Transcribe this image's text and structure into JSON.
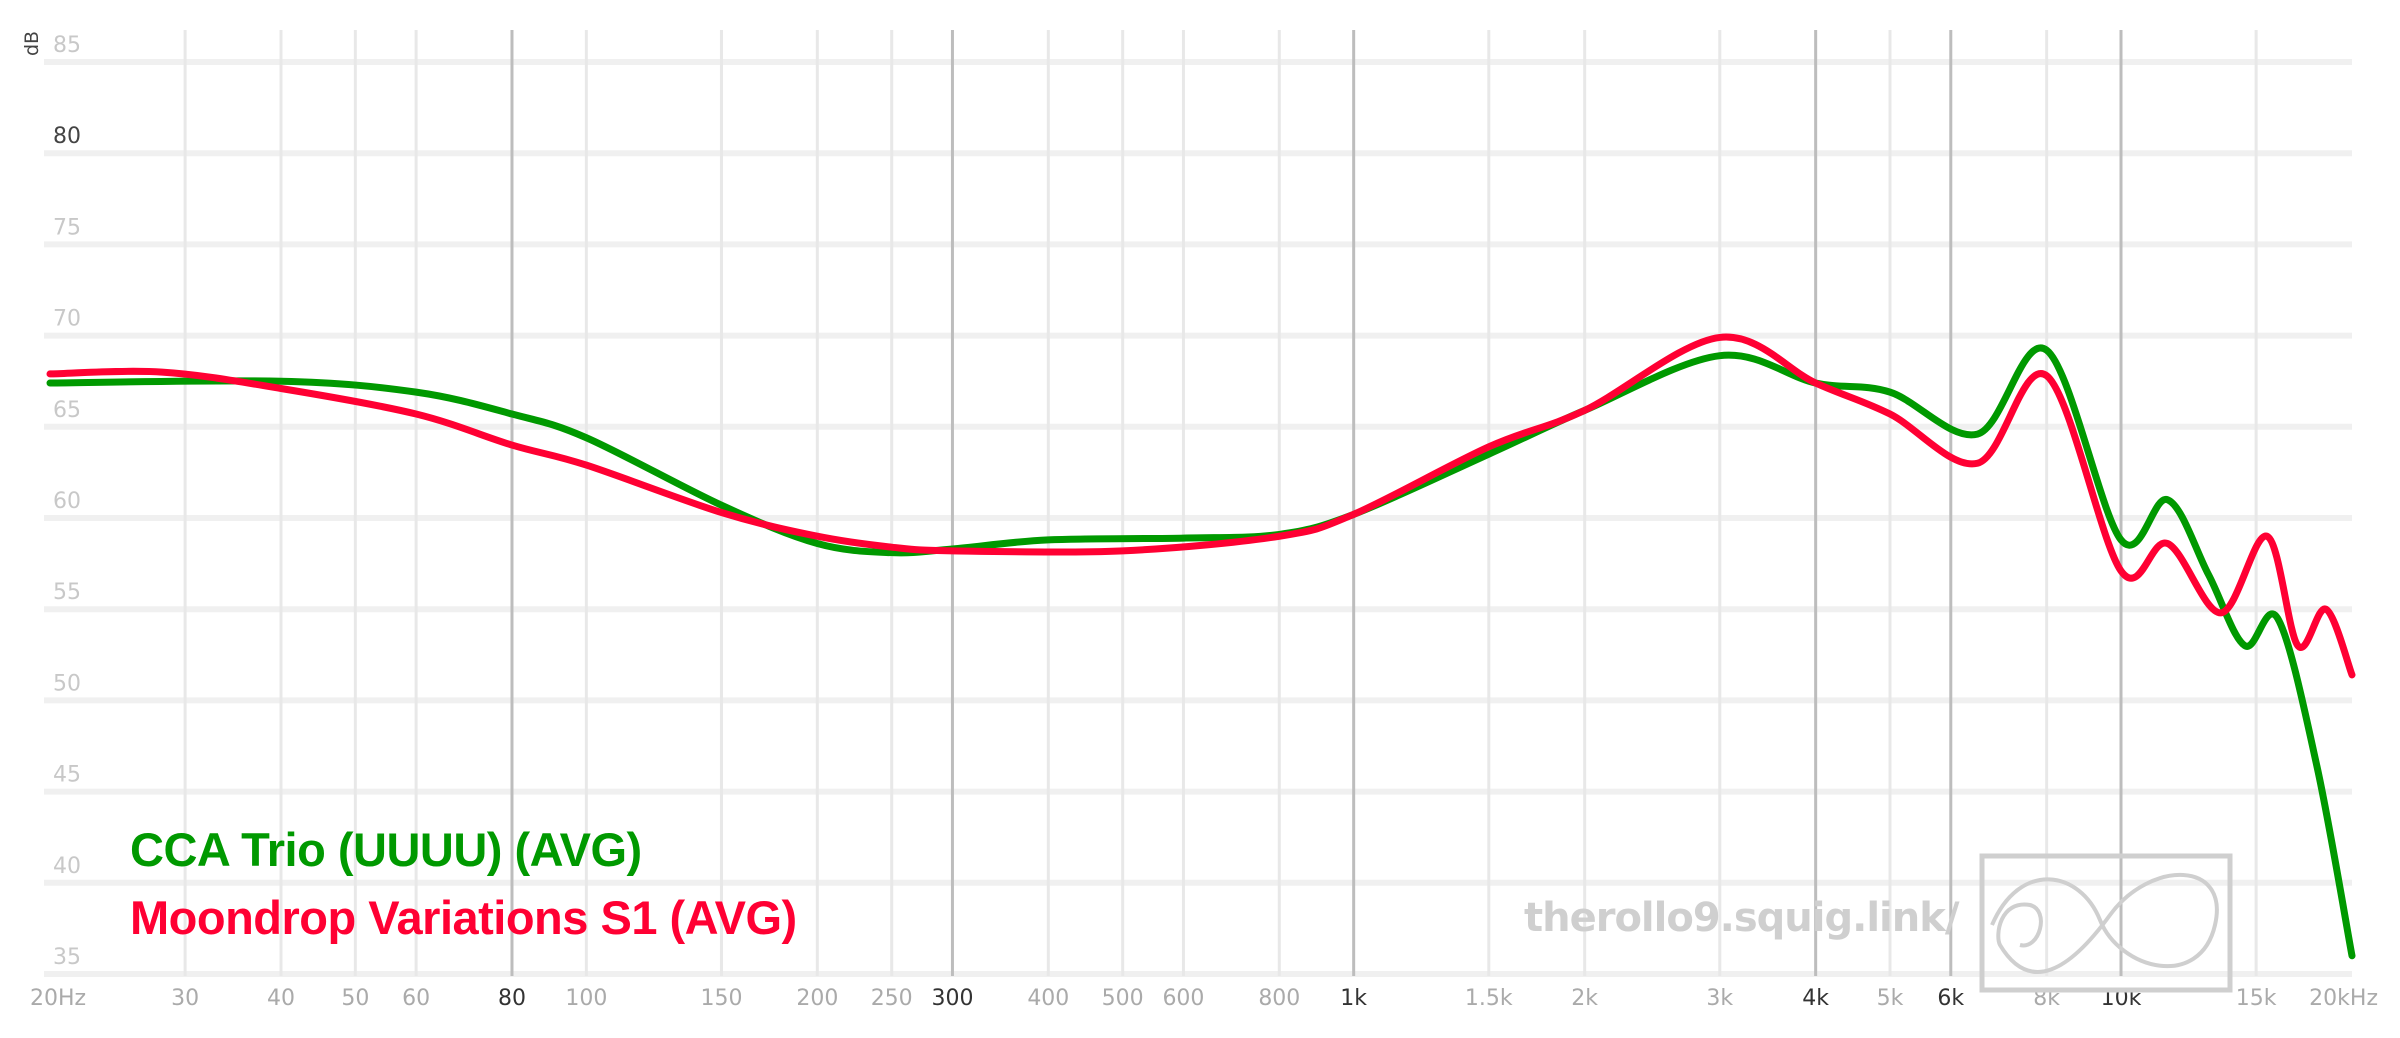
{
  "chart_data": {
    "type": "line",
    "title": "",
    "xlabel": "",
    "ylabel": "dB",
    "xscale": "log",
    "xlim": [
      20,
      20000
    ],
    "ylim": [
      35,
      85
    ],
    "grid": true,
    "legend_position": "bottom-left",
    "x_ticks": [
      {
        "value": 20,
        "label": "20Hz",
        "major": false
      },
      {
        "value": 30,
        "label": "30",
        "major": false
      },
      {
        "value": 40,
        "label": "40",
        "major": false
      },
      {
        "value": 50,
        "label": "50",
        "major": false
      },
      {
        "value": 60,
        "label": "60",
        "major": false
      },
      {
        "value": 80,
        "label": "80",
        "major": true
      },
      {
        "value": 100,
        "label": "100",
        "major": false
      },
      {
        "value": 150,
        "label": "150",
        "major": false
      },
      {
        "value": 200,
        "label": "200",
        "major": false
      },
      {
        "value": 250,
        "label": "250",
        "major": false
      },
      {
        "value": 300,
        "label": "300",
        "major": true
      },
      {
        "value": 400,
        "label": "400",
        "major": false
      },
      {
        "value": 500,
        "label": "500",
        "major": false
      },
      {
        "value": 600,
        "label": "600",
        "major": false
      },
      {
        "value": 800,
        "label": "800",
        "major": false
      },
      {
        "value": 1000,
        "label": "1k",
        "major": true
      },
      {
        "value": 1500,
        "label": "1.5k",
        "major": false
      },
      {
        "value": 2000,
        "label": "2k",
        "major": false
      },
      {
        "value": 3000,
        "label": "3k",
        "major": false
      },
      {
        "value": 4000,
        "label": "4k",
        "major": true
      },
      {
        "value": 5000,
        "label": "5k",
        "major": false
      },
      {
        "value": 6000,
        "label": "6k",
        "major": true
      },
      {
        "value": 8000,
        "label": "8k",
        "major": false
      },
      {
        "value": 10000,
        "label": "10k",
        "major": true
      },
      {
        "value": 15000,
        "label": "15k",
        "major": false
      },
      {
        "value": 20000,
        "label": "20kHz",
        "major": false
      }
    ],
    "y_ticks": [
      {
        "value": 85,
        "label": "85",
        "major": false
      },
      {
        "value": 80,
        "label": "80",
        "major": true
      },
      {
        "value": 75,
        "label": "75",
        "major": false
      },
      {
        "value": 70,
        "label": "70",
        "major": false
      },
      {
        "value": 65,
        "label": "65",
        "major": false
      },
      {
        "value": 60,
        "label": "60",
        "major": false
      },
      {
        "value": 55,
        "label": "55",
        "major": false
      },
      {
        "value": 50,
        "label": "50",
        "major": false
      },
      {
        "value": 45,
        "label": "45",
        "major": false
      },
      {
        "value": 40,
        "label": "40",
        "major": false
      },
      {
        "value": 35,
        "label": "35",
        "major": false
      }
    ],
    "series": [
      {
        "name": "CCA Trio (UUUU) (AVG)",
        "color": "#009900",
        "x": [
          20,
          40,
          60,
          80,
          100,
          150,
          200,
          250,
          300,
          400,
          600,
          800,
          1000,
          1500,
          2000,
          3000,
          4000,
          5000,
          6500,
          8000,
          10000,
          11500,
          13000,
          14500,
          16000,
          18000,
          20000
        ],
        "y": [
          67.4,
          67.5,
          66.9,
          65.7,
          64.4,
          60.7,
          58.6,
          58.1,
          58.3,
          58.8,
          58.9,
          59.1,
          60.2,
          63.5,
          65.9,
          68.9,
          67.4,
          66.9,
          64.6,
          69.2,
          58.8,
          61.0,
          56.9,
          53.0,
          54.5,
          46.4,
          36.0
        ]
      },
      {
        "name": "Moondrop Variations S1 (AVG)",
        "color": "#ff0033",
        "x": [
          20,
          28,
          40,
          60,
          80,
          100,
          150,
          200,
          250,
          300,
          500,
          800,
          1000,
          1500,
          2000,
          3000,
          4000,
          5000,
          6500,
          8000,
          10000,
          11500,
          13500,
          15500,
          17000,
          18500,
          20000
        ],
        "y": [
          67.9,
          68.0,
          67.1,
          65.7,
          64.0,
          62.9,
          60.3,
          59.0,
          58.4,
          58.2,
          58.2,
          59.0,
          60.2,
          63.9,
          65.9,
          69.9,
          67.4,
          65.7,
          63.0,
          67.8,
          57.1,
          58.6,
          54.8,
          59.0,
          53.0,
          55.0,
          51.4
        ]
      }
    ]
  },
  "legend": {
    "items": [
      {
        "label": "CCA Trio (UUUU) (AVG)",
        "color": "#009900"
      },
      {
        "label": "Moondrop Variations S1 (AVG)",
        "color": "#ff0033"
      }
    ]
  },
  "watermark": {
    "text": "therollo9.squig.link/"
  }
}
